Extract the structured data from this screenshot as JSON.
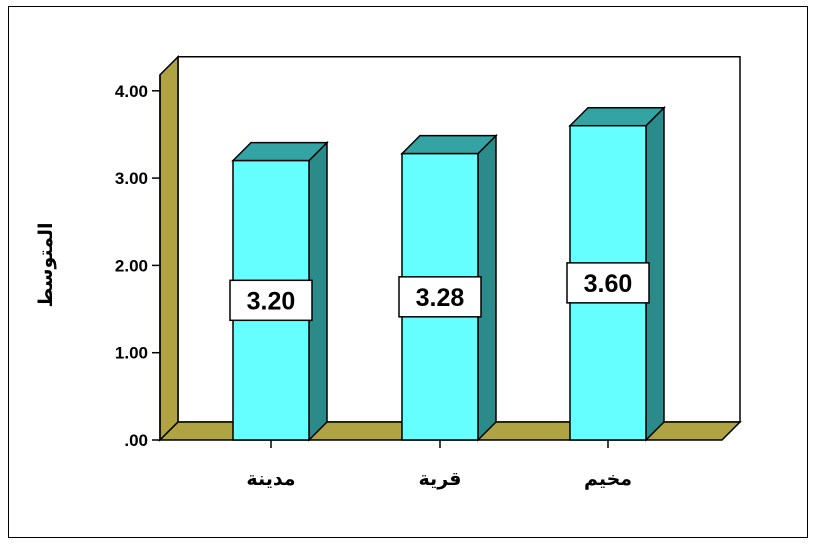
{
  "chart_data": {
    "type": "bar",
    "categories": [
      "مدينة",
      "قرية",
      "مخيم"
    ],
    "values": [
      3.2,
      3.28,
      3.6
    ],
    "data_labels": [
      "3.20",
      "3.28",
      "3.60"
    ],
    "ylabel": "المتوسط",
    "xlabel": "",
    "ylim": [
      0,
      4
    ],
    "yticks": [
      0,
      1,
      2,
      3,
      4
    ],
    "ytick_labels": [
      ".00",
      "1.00",
      "2.00",
      "3.00",
      "4.00"
    ],
    "grid": false,
    "style": "3d",
    "colors": {
      "bar_front": "#66ffff",
      "bar_top": "#33a3a3",
      "bar_side": "#2b8a8a",
      "floor": "#b0a343",
      "wall": "#ffffff"
    }
  }
}
